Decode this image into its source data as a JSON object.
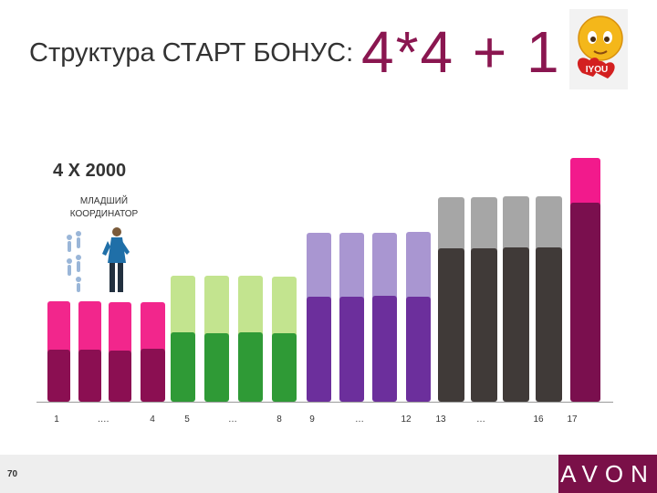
{
  "slide": {
    "title_left": "Структура СТАРТ БОНУС:",
    "title_right": "4*4 + 1",
    "subtitle": "4 X 2000",
    "role": "МЛАДШИЙ КООРДИНАТОР",
    "page_number": "70",
    "brand": "AVON",
    "badge": "IYOU"
  },
  "colors": {
    "pink_top": "#f2268c",
    "pink_bottom": "#8b0f52",
    "green_top": "#c3e48f",
    "green_bottom": "#2f9a36",
    "purple_top": "#a996d1",
    "purple_bottom": "#6c2f9c",
    "gray_top": "#a6a6a6",
    "gray_bottom": "#403a38",
    "magenta_top": "#f21a8c",
    "magenta_bottom": "#7a0f4e"
  },
  "axis_labels": [
    "1",
    "….",
    "4",
    "5",
    "…",
    "8",
    "9",
    "…",
    "12",
    "13",
    "…",
    "16",
    "17"
  ]
}
